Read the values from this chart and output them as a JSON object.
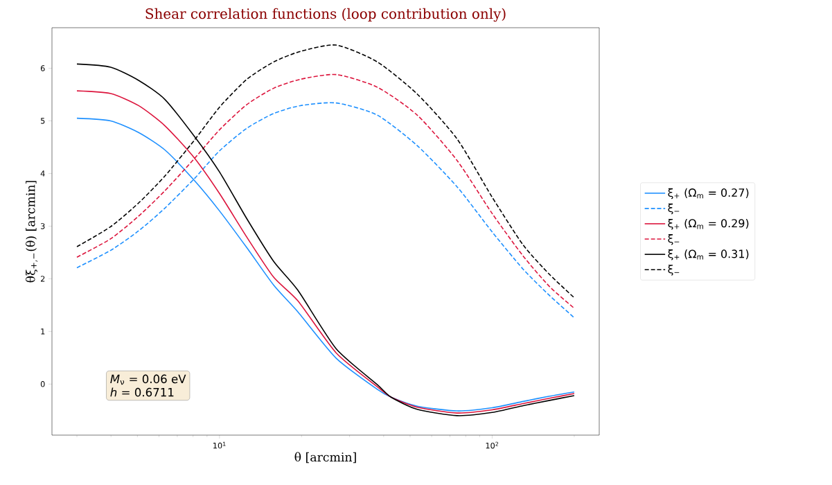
{
  "chart_data": {
    "type": "line",
    "title": "Shear correlation functions (loop contribution only)",
    "xlabel": "θ [arcmin]",
    "ylabel": "θξ$_{+,−}$(θ) [arcmin]",
    "log": "x",
    "xlim": [
      2.43,
      247
    ],
    "ylim": [
      -0.97,
      6.77
    ],
    "xticks": [
      {
        "value": 3,
        "label": null
      },
      {
        "value": 4,
        "label": null
      },
      {
        "value": 5,
        "label": null
      },
      {
        "value": 6,
        "label": null
      },
      {
        "value": 7,
        "label": null
      },
      {
        "value": 8,
        "label": null
      },
      {
        "value": 9,
        "label": null
      },
      {
        "value": 10,
        "label": "10$^{1}$"
      },
      {
        "value": 20,
        "label": null
      },
      {
        "value": 30,
        "label": null
      },
      {
        "value": 40,
        "label": null
      },
      {
        "value": 50,
        "label": null
      },
      {
        "value": 60,
        "label": null
      },
      {
        "value": 70,
        "label": null
      },
      {
        "value": 80,
        "label": null
      },
      {
        "value": 90,
        "label": null
      },
      {
        "value": 100,
        "label": "10$^{2}$"
      },
      {
        "value": 200,
        "label": null
      }
    ],
    "yticks": [
      0,
      1,
      2,
      3,
      4,
      5,
      6
    ],
    "legend": "right",
    "marker": "none",
    "annotations": [
      "*M*$_{ν}$ = 0.06 eV",
      "*h* = 0.6711"
    ],
    "series": [
      {
        "name": "ξ$_{+}$ (Ω$_{m}$ = 0.27)",
        "color": "#1e90ff",
        "line_style": "solid",
        "x": [
          3,
          3.99,
          5.05,
          6.3,
          8.08,
          10,
          12.6,
          15.8,
          19.4,
          26.8,
          37.9,
          42.6,
          53.1,
          74.3,
          100,
          130,
          162.5,
          200
        ],
        "values": [
          5.05,
          5.0,
          4.78,
          4.45,
          3.87,
          3.29,
          2.59,
          1.88,
          1.37,
          0.49,
          -0.1,
          -0.25,
          -0.42,
          -0.51,
          -0.45,
          -0.33,
          -0.23,
          -0.15
        ]
      },
      {
        "name": "ξ$_{−}$",
        "color": "#1e90ff",
        "line_style": "dashed",
        "x": [
          3,
          3.99,
          5.05,
          6.3,
          8.08,
          10,
          12.6,
          15.8,
          19.8,
          26.8,
          37.9,
          53.1,
          74.3,
          100,
          130,
          162.5,
          200
        ],
        "values": [
          2.21,
          2.54,
          2.91,
          3.34,
          3.9,
          4.43,
          4.86,
          5.14,
          5.29,
          5.34,
          5.11,
          4.53,
          3.75,
          2.89,
          2.18,
          1.68,
          1.26
        ]
      },
      {
        "name": "ξ$_{+}$ (Ω$_{m}$ = 0.29)",
        "color": "#dc143c",
        "line_style": "solid",
        "x": [
          3,
          3.99,
          5.05,
          6.3,
          8.08,
          10,
          12.6,
          15.8,
          19.4,
          26.8,
          37.9,
          42.6,
          53.1,
          74.3,
          100,
          130,
          162.5,
          200
        ],
        "values": [
          5.57,
          5.52,
          5.29,
          4.91,
          4.3,
          3.62,
          2.79,
          2.03,
          1.58,
          0.59,
          -0.05,
          -0.25,
          -0.44,
          -0.55,
          -0.49,
          -0.37,
          -0.27,
          -0.18
        ]
      },
      {
        "name": "ξ$_{−}$",
        "color": "#dc143c",
        "line_style": "dashed",
        "x": [
          3,
          3.99,
          5.05,
          6.3,
          8.08,
          10,
          12.6,
          15.8,
          19.8,
          26.8,
          37.9,
          53.1,
          74.3,
          100,
          130,
          162.5,
          200
        ],
        "values": [
          2.41,
          2.76,
          3.19,
          3.67,
          4.28,
          4.83,
          5.31,
          5.62,
          5.79,
          5.88,
          5.64,
          5.11,
          4.25,
          3.24,
          2.43,
          1.85,
          1.44
        ]
      },
      {
        "name": "ξ$_{+}$ (Ω$_{m}$ = 0.31)",
        "color": "#000000",
        "line_style": "solid",
        "x": [
          3,
          3.99,
          5.05,
          6.3,
          8.08,
          10,
          12.6,
          15.8,
          19.4,
          26.8,
          37.9,
          42.6,
          53.1,
          74.3,
          100,
          130,
          162.5,
          200
        ],
        "values": [
          6.08,
          6.02,
          5.77,
          5.41,
          4.71,
          4.03,
          3.14,
          2.33,
          1.78,
          0.67,
          -0.01,
          -0.25,
          -0.48,
          -0.6,
          -0.54,
          -0.41,
          -0.31,
          -0.22
        ]
      },
      {
        "name": "ξ$_{−}$",
        "color": "#000000",
        "line_style": "dashed",
        "x": [
          3,
          3.99,
          5.05,
          6.3,
          8.08,
          10,
          12.6,
          15.8,
          19.8,
          26.8,
          37.9,
          53.1,
          74.3,
          100,
          130,
          162.5,
          200
        ],
        "values": [
          2.61,
          2.99,
          3.44,
          3.95,
          4.63,
          5.26,
          5.79,
          6.12,
          6.32,
          6.44,
          6.12,
          5.51,
          4.66,
          3.55,
          2.64,
          2.08,
          1.64
        ]
      }
    ]
  }
}
